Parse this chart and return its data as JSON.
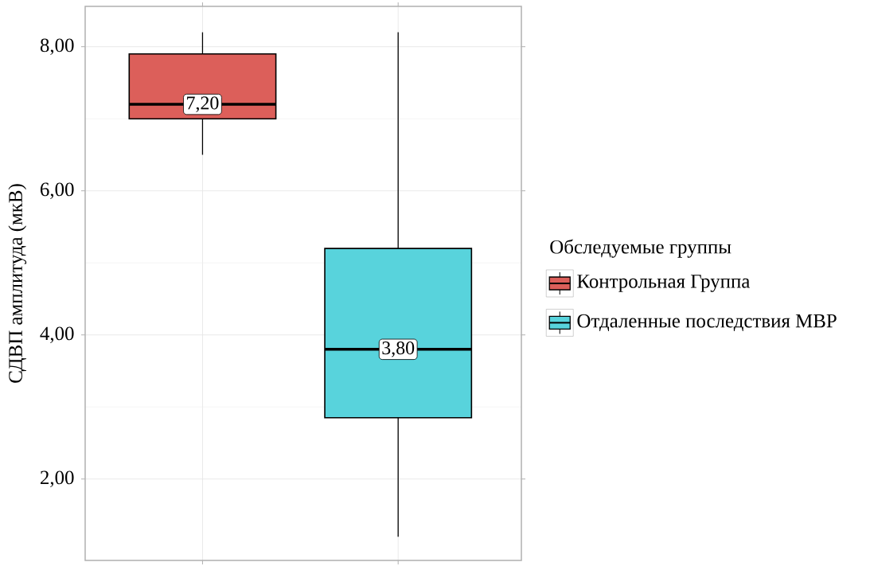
{
  "chart_data": {
    "type": "box",
    "ylabel": "СДВП амплитуда (мкВ)",
    "legend_title": "Обследуемые группы",
    "categories": [
      null,
      null
    ],
    "ylim": [
      0.87,
      8.56
    ],
    "yticks": [
      {
        "value": 2,
        "label": "2,00"
      },
      {
        "value": 4,
        "label": "4,00"
      },
      {
        "value": 6,
        "label": "6,00"
      },
      {
        "value": 8,
        "label": "8,00"
      }
    ],
    "grid": true,
    "legend": "right",
    "tick_labels": "y",
    "series": [
      {
        "name": "Контрольная Группа",
        "color": "#dc5f5a",
        "boxes": [
          {
            "low": 6.5,
            "q1": 7.0,
            "median": 7.2,
            "q3": 7.9,
            "high": 8.2
          },
          null
        ],
        "value_labels": [
          "7,20",
          null
        ]
      },
      {
        "name": "Отдаленные последствия МВР",
        "color": "#58d3dc",
        "boxes": [
          null,
          {
            "low": 1.2,
            "q1": 2.85,
            "median": 3.8,
            "q3": 5.2,
            "high": 8.2
          }
        ],
        "value_labels": [
          null,
          "3,80"
        ]
      }
    ]
  }
}
